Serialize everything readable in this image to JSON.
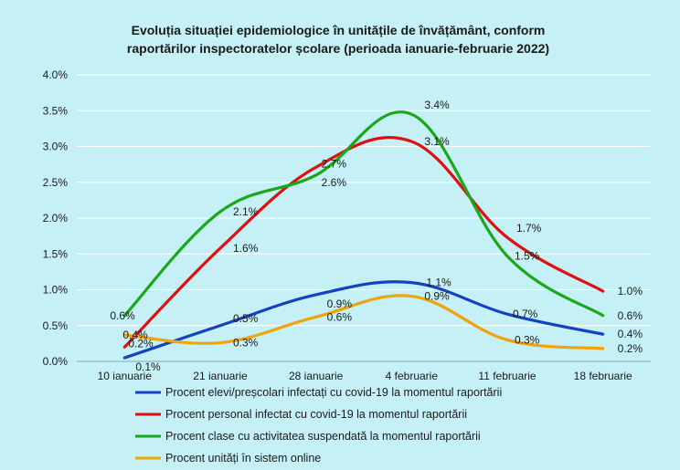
{
  "chart_data": {
    "type": "line",
    "title": [
      "Evoluția situației epidemiologice în unitățile de învățământ, conform",
      "raportărilor inspectoratelor școlare (perioada ianuarie-februarie 2022)"
    ],
    "categories": [
      "10 ianuarie",
      "21 ianuarie",
      "28 ianuarie",
      "4 februarie",
      "11 februarie",
      "18 februarie"
    ],
    "y_ticks": [
      "0.0%",
      "0.5%",
      "1.0%",
      "1.5%",
      "2.0%",
      "2.5%",
      "3.0%",
      "3.5%",
      "4.0%"
    ],
    "ylim": [
      0,
      4.0
    ],
    "grid": true,
    "legend_position": "bottom",
    "series": [
      {
        "name": "Procent elevi/preșcolari infectați cu covid-19 la momentul raportării",
        "color": "#1541c2",
        "values": [
          0.05,
          0.5,
          0.93,
          1.1,
          0.66,
          0.38
        ],
        "labels": [
          "0.1%",
          "0.5%",
          "0.9%",
          "1.1%",
          "0.7%",
          "0.4%"
        ]
      },
      {
        "name": "Procent personal infectat cu covid-19 la momentul raportării",
        "color": "#dd1111",
        "values": [
          0.2,
          1.58,
          2.71,
          3.07,
          1.73,
          0.98
        ],
        "labels": [
          "0.2%",
          "1.6%",
          "2.7%",
          "3.1%",
          "1.7%",
          "1.0%"
        ]
      },
      {
        "name": "Procent clase cu activitatea suspendată la momentul raportării",
        "color": "#1aa81a",
        "values": [
          0.64,
          2.09,
          2.6,
          3.45,
          1.47,
          0.64
        ],
        "labels": [
          "0.6%",
          "2.1%",
          "2.6%",
          "3.4%",
          "1.5%",
          "0.6%"
        ]
      },
      {
        "name": "Procent unități în sistem online",
        "color": "#f0a30a",
        "values": [
          0.37,
          0.26,
          0.62,
          0.91,
          0.3,
          0.18
        ],
        "labels": [
          "0.4%",
          "0.3%",
          "0.6%",
          "0.9%",
          "0.3%",
          "0.2%"
        ]
      }
    ]
  }
}
